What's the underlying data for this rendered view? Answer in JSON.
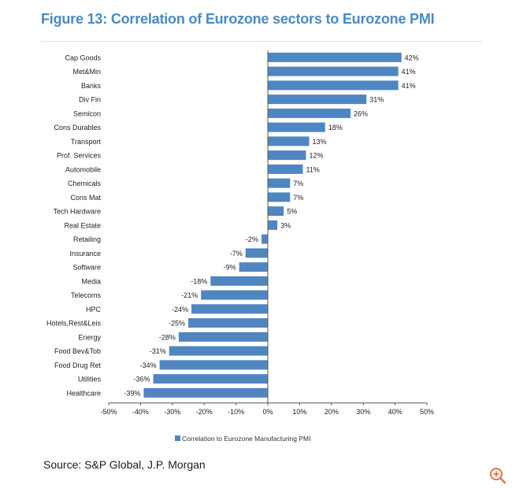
{
  "title": "Figure 13: Correlation of Eurozone sectors to Eurozone PMI",
  "source": "Source: S&P Global, J.P. Morgan",
  "colors": {
    "bar": "#4f86c0",
    "title": "#4a8ac3",
    "zoom": "#e8734a"
  },
  "icons": {
    "zoom": "zoom-in-icon"
  },
  "chart_data": {
    "type": "bar",
    "orientation": "horizontal",
    "categories": [
      "Cap Goods",
      "Met&Min",
      "Banks",
      "Div Fin",
      "Semicon",
      "Cons Durables",
      "Transport",
      "Prof. Services",
      "Automobile",
      "Chemicals",
      "Cons Mat",
      "Tech Hardware",
      "Real Estate",
      "Retailing",
      "Insurance",
      "Software",
      "Media",
      "Telecoms",
      "HPC",
      "Hotels,Rest&Leis",
      "Energy",
      "Food Bev&Tob",
      "Food Drug Ret",
      "Utilities",
      "Healthcare"
    ],
    "values": [
      42,
      41,
      41,
      31,
      26,
      18,
      13,
      12,
      11,
      7,
      7,
      5,
      3,
      -2,
      -7,
      -9,
      -18,
      -21,
      -24,
      -25,
      -28,
      -31,
      -34,
      -36,
      -39
    ],
    "data_labels": [
      "42%",
      "41%",
      "41%",
      "31%",
      "26%",
      "18%",
      "13%",
      "12%",
      "11%",
      "7%",
      "7%",
      "5%",
      "3%",
      "-2%",
      "-7%",
      "-9%",
      "-18%",
      "-21%",
      "-24%",
      "-25%",
      "-28%",
      "-31%",
      "-34%",
      "-36%",
      "-39%"
    ],
    "series": [
      {
        "name": "Correlation to Eurozone Manufacturing PMI"
      }
    ],
    "xlim": [
      -50,
      50
    ],
    "x_ticks": [
      -50,
      -40,
      -30,
      -20,
      -10,
      0,
      10,
      20,
      30,
      40,
      50
    ],
    "x_tick_labels": [
      "-50%",
      "-40%",
      "-30%",
      "-20%",
      "-10%",
      "0%",
      "10%",
      "20%",
      "30%",
      "40%",
      "50%"
    ],
    "legend_position": "bottom",
    "grid": false
  }
}
